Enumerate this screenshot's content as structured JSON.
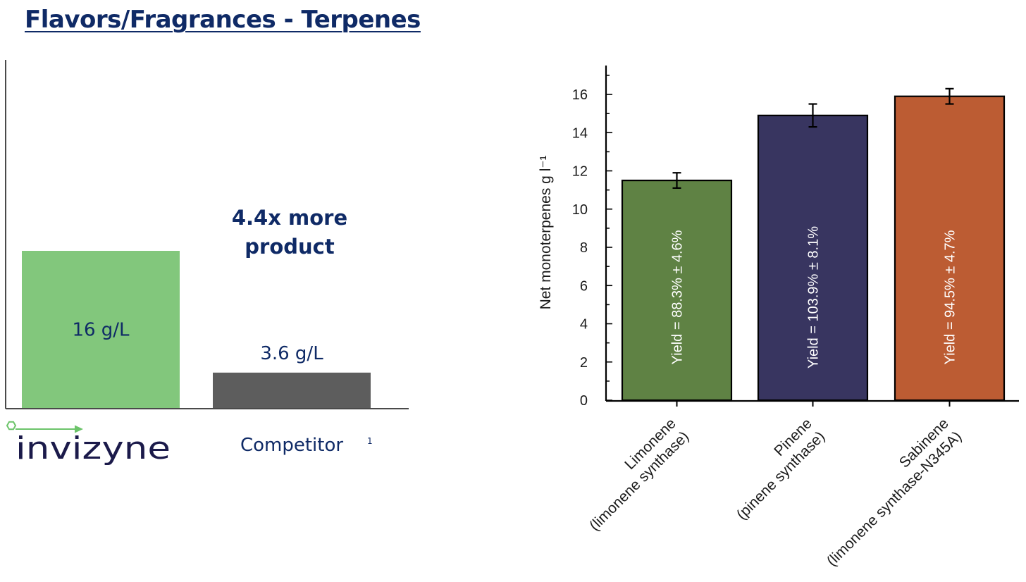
{
  "title": "Flavors/Fragrances - Terpenes",
  "brand_logo_text": "invizyne",
  "colors": {
    "title": "#0f2a66",
    "invizyne_bar": "#82c77c",
    "competitor_bar": "#5d5d5d",
    "limonene_bar": "#5f8244",
    "pinene_bar": "#383560",
    "sabinene_bar": "#bc5c33",
    "logo_arrow": "#6cc46a"
  },
  "comparison": {
    "annotation": [
      "4.4x more",
      "product"
    ],
    "footnote_marker": "1"
  },
  "chart_data": [
    {
      "type": "bar",
      "categories": [
        "invizyne",
        "Competitor"
      ],
      "values": [
        16,
        3.6
      ],
      "data_labels": [
        "16 g/L",
        "3.6 g/L"
      ],
      "unit": "g/L",
      "ylim": [
        0,
        16
      ],
      "grid": false,
      "legend": "none"
    },
    {
      "type": "bar",
      "ylabel": "Net monoterpenes g l⁻¹",
      "categories": [
        [
          "Limonene",
          "(limonene synthase)"
        ],
        [
          "Pinene",
          "(pinene synthase)"
        ],
        [
          "Sabinene",
          "(limonene synthase-N345A)"
        ]
      ],
      "values": [
        11.5,
        14.9,
        15.9
      ],
      "error_bars": [
        0.4,
        0.6,
        0.4
      ],
      "bar_labels": [
        "Yield = 88.3% ± 4.6%",
        "Yield = 103.9% ± 8.1%",
        "Yield = 94.5% ± 4.7%"
      ],
      "yticks": [
        0,
        2,
        4,
        6,
        8,
        10,
        12,
        14,
        16
      ],
      "ylim": [
        0,
        17.5
      ],
      "grid": false,
      "legend": "none"
    }
  ]
}
